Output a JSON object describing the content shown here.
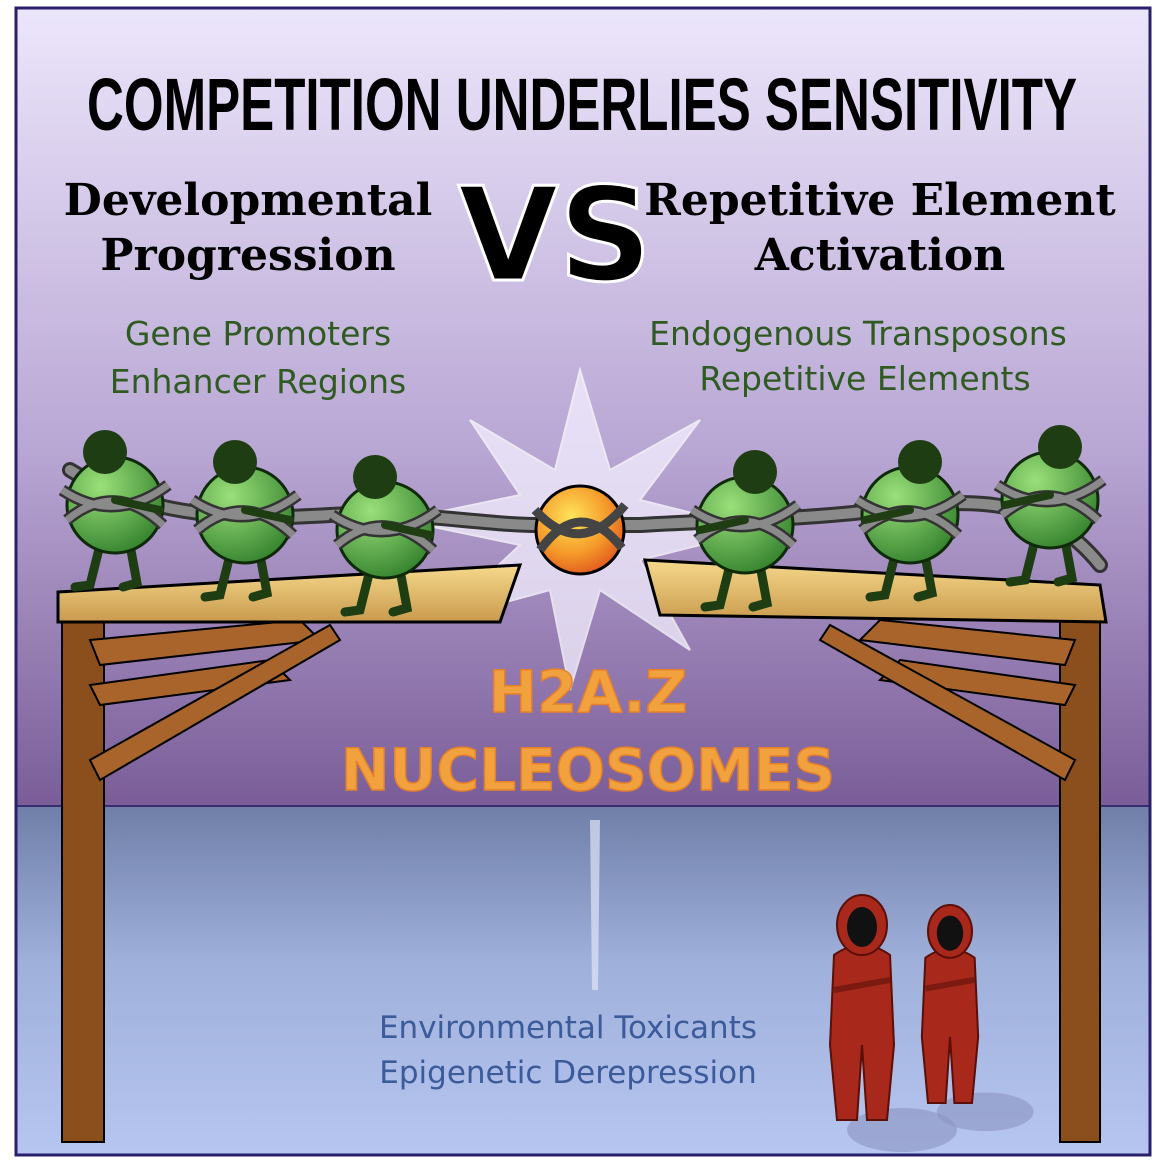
{
  "title": "COMPETITION UNDERLIES SENSITIVITY",
  "vs": "VS",
  "left": {
    "heading": [
      "Developmental",
      "Progression"
    ],
    "items": [
      "Gene Promoters",
      "Enhancer Regions"
    ]
  },
  "right": {
    "heading": [
      "Repetitive Element",
      "Activation"
    ],
    "items": [
      "Endogenous Transposons",
      "Repetitive Elements"
    ]
  },
  "center": {
    "label": [
      "H2A.Z",
      "NUCLEOSOMES"
    ]
  },
  "footer": {
    "lines": [
      "Environmental Toxicants",
      "Epigenetic Derepression"
    ]
  }
}
